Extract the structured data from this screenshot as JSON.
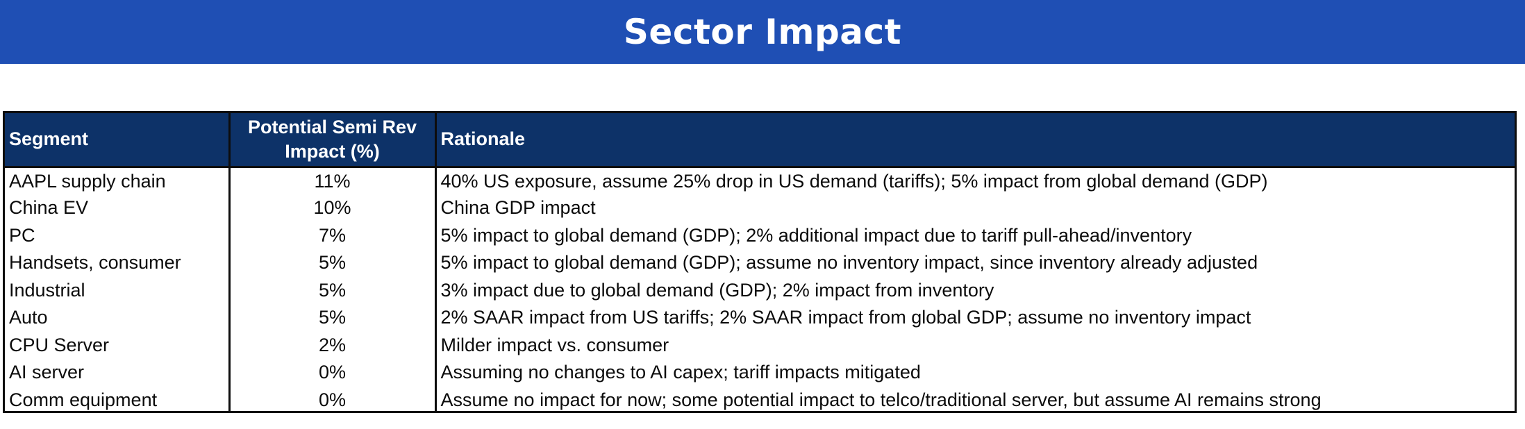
{
  "title": "Sector Impact",
  "table": {
    "headers": {
      "segment": "Segment",
      "impact": "Potential Semi Rev Impact (%)",
      "rationale": "Rationale"
    },
    "rows": [
      {
        "segment": "AAPL supply chain",
        "impact": "11%",
        "rationale": "40% US exposure, assume 25% drop in US demand (tariffs); 5% impact from global demand (GDP)"
      },
      {
        "segment": "China EV",
        "impact": "10%",
        "rationale": "China GDP impact"
      },
      {
        "segment": "PC",
        "impact": "7%",
        "rationale": "5% impact to global demand (GDP); 2% additional impact due to tariff pull-ahead/inventory"
      },
      {
        "segment": "Handsets, consumer",
        "impact": "5%",
        "rationale": "5% impact to global demand (GDP); assume no inventory impact, since inventory already adjusted"
      },
      {
        "segment": "Industrial",
        "impact": "5%",
        "rationale": "3% impact due to global demand (GDP); 2% impact from inventory"
      },
      {
        "segment": "Auto",
        "impact": "5%",
        "rationale": "2% SAAR impact from US tariffs; 2% SAAR impact from global GDP; assume no inventory impact"
      },
      {
        "segment": "CPU Server",
        "impact": "2%",
        "rationale": "Milder impact vs. consumer"
      },
      {
        "segment": "AI server",
        "impact": "0%",
        "rationale": "Assuming no changes to AI capex; tariff impacts mitigated"
      },
      {
        "segment": "Comm equipment",
        "impact": "0%",
        "rationale": "Assume no impact for now; some potential impact to telco/traditional server, but assume AI remains strong"
      }
    ]
  },
  "colors": {
    "banner": "#1f4fb4",
    "header": "#0d3268",
    "border": "#0d0d0d"
  }
}
